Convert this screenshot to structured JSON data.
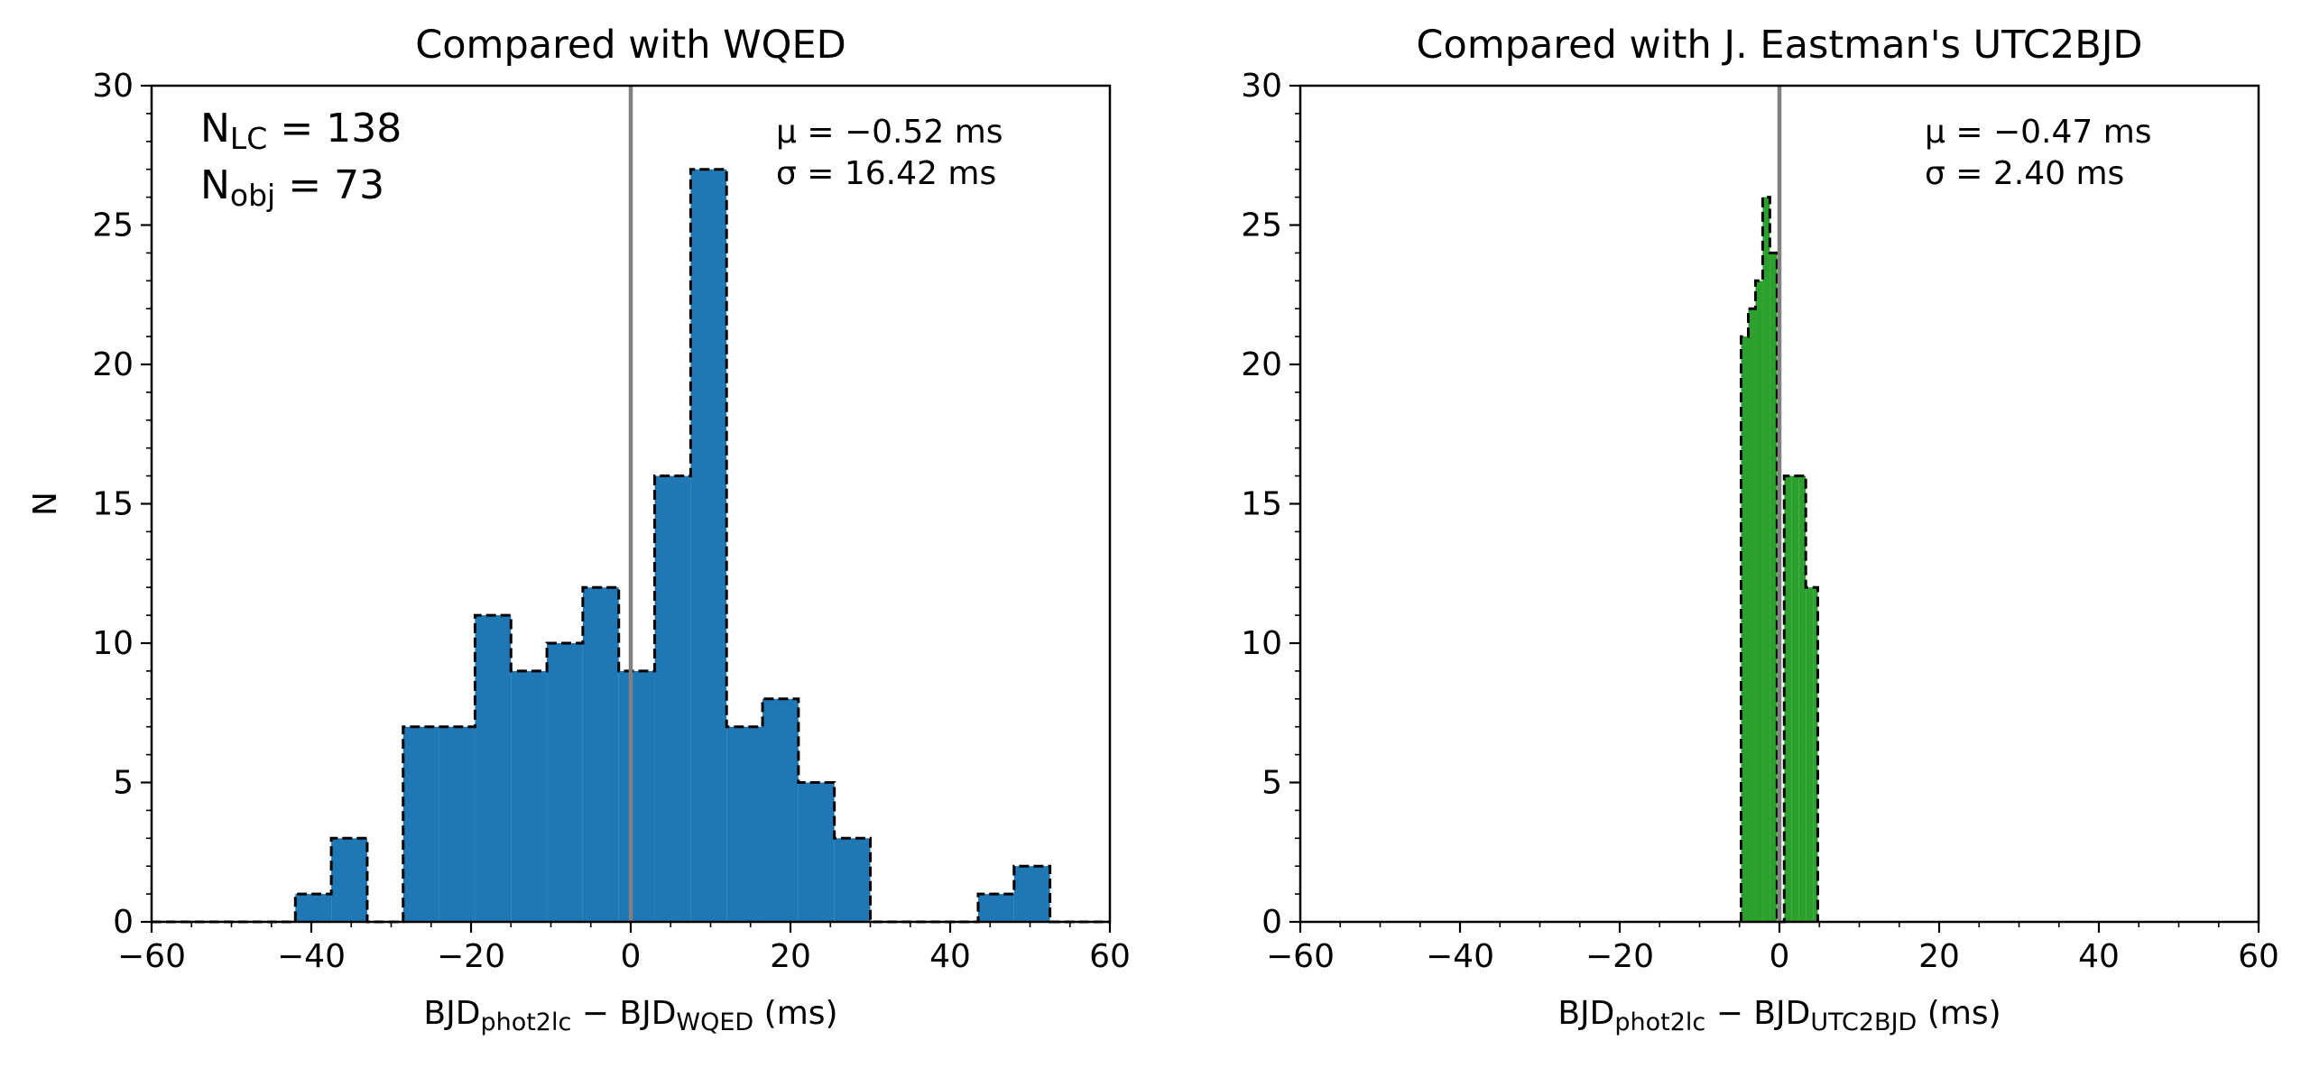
{
  "chart_data": [
    {
      "type": "bar",
      "title": "Compared with WQED",
      "xlabel_parts": [
        "BJD",
        "phot2lc",
        " − BJD",
        "WQED",
        "  (ms)"
      ],
      "ylabel": "N",
      "xlim": [
        -60,
        60
      ],
      "ylim": [
        0,
        30
      ],
      "xticks": [
        -60,
        -40,
        -20,
        0,
        20,
        40,
        60
      ],
      "yticks": [
        0,
        5,
        10,
        15,
        20,
        25,
        30
      ],
      "bar_color": "#1f77b4",
      "edge_style": "dashed",
      "vline_x": 0,
      "vline_color": "#808080",
      "bins": [
        -60,
        -55.5,
        -51,
        -46.5,
        -42,
        -37.5,
        -33,
        -28.5,
        -24,
        -19.5,
        -15,
        -10.5,
        -6,
        -1.5,
        3,
        7.5,
        12,
        16.5,
        21,
        25.5,
        30,
        34.5,
        39,
        43.5,
        48,
        52.5,
        57,
        60
      ],
      "counts": [
        0,
        0,
        0,
        0,
        1,
        3,
        0,
        7,
        7,
        11,
        9,
        10,
        12,
        9,
        16,
        27,
        7,
        8,
        5,
        3,
        0,
        0,
        0,
        1,
        2,
        0,
        0
      ],
      "annotations": {
        "mu": "μ = −0.52  ms",
        "sigma": "σ = 16.42  ms",
        "n_lc_sym": "N",
        "n_lc_sub": "LC",
        "n_lc_val": " = 138",
        "n_obj_sym": "N",
        "n_obj_sub": "obj",
        "n_obj_val": " = 73"
      }
    },
    {
      "type": "bar",
      "title": "Compared with J. Eastman's UTC2BJD",
      "xlabel_parts": [
        "BJD",
        "phot2lc",
        " − BJD",
        "UTC2BJD",
        "  (ms)"
      ],
      "ylabel": "",
      "xlim": [
        -60,
        60
      ],
      "ylim": [
        0,
        30
      ],
      "xticks": [
        -60,
        -40,
        -20,
        0,
        20,
        40,
        60
      ],
      "yticks": [
        0,
        5,
        10,
        15,
        20,
        25,
        30
      ],
      "bar_color": "#2ca02c",
      "edge_style": "dashed",
      "vline_x": 0,
      "vline_color": "#808080",
      "bins": [
        -4.8,
        -3.9,
        -3.0,
        -2.1,
        -1.2,
        -0.3,
        0.6,
        1.5,
        2.4,
        3.3,
        4.2,
        4.8
      ],
      "counts": [
        21,
        22,
        23,
        26,
        24,
        0,
        16,
        16,
        16,
        12,
        12
      ],
      "annotations": {
        "mu": "μ = −0.47  ms",
        "sigma": "σ = 2.40  ms"
      }
    }
  ]
}
